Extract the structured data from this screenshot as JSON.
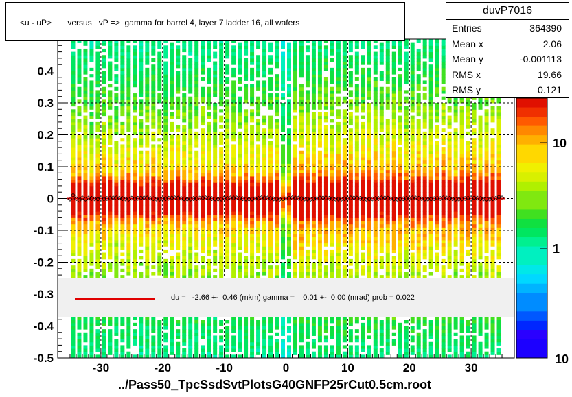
{
  "title": "<u - uP>       versus   vP =>  gamma for barrel 4, layer 7 ladder 16, all wafers",
  "stats": {
    "name": "duvP7016",
    "rows": [
      {
        "key": "Entries",
        "value": "364390"
      },
      {
        "key": "Mean x",
        "value": "2.06"
      },
      {
        "key": "Mean y",
        "value": "-0.001113"
      },
      {
        "key": "RMS x",
        "value": "19.66"
      },
      {
        "key": "RMS y",
        "value": "0.121"
      }
    ]
  },
  "fit_text": "du =   -2.66 +-  0.46 (mkm) gamma =    0.01 +-  0.00 (mrad) prob = 0.022",
  "footer": "../Pass50_TpcSsdSvtPlotsG40GNFP25rCut0.5cm.root",
  "colors": {
    "fit_line": "#e00000",
    "fit_box": "#f0f0f0"
  },
  "chart_data": {
    "type": "heatmap",
    "x_ticks": [
      -30,
      -20,
      -10,
      0,
      10,
      20,
      30
    ],
    "y_ticks": [
      -0.5,
      -0.4,
      -0.3,
      -0.2,
      -0.1,
      0,
      0.1,
      0.2,
      0.3,
      0.4
    ],
    "y_tick_labels": [
      "-0.5",
      "-0.4",
      "-0.3",
      "-0.2",
      "-0.1",
      "0",
      "0.1",
      "0.2",
      "0.3",
      "0.4"
    ],
    "xlim": [
      -37,
      37
    ],
    "ylim": [
      -0.5,
      0.5
    ],
    "z_scale": "log",
    "z_ticks": [
      1,
      10
    ],
    "z_tick_labels": [
      "1",
      "10"
    ],
    "z_bottom_label": "10",
    "grid": true,
    "band_center_y": 0,
    "profile_points": [
      {
        "x": -34.5,
        "y": 0.01
      },
      {
        "x": -33.5,
        "y": -0.005
      },
      {
        "x": -32.5,
        "y": -0.002
      },
      {
        "x": -30,
        "y": 0.0
      },
      {
        "x": -25,
        "y": 0.001
      },
      {
        "x": -20,
        "y": -0.001
      },
      {
        "x": -15,
        "y": 0.0
      },
      {
        "x": -10,
        "y": 0.002
      },
      {
        "x": -5,
        "y": 0.0
      },
      {
        "x": 0,
        "y": 0.0
      },
      {
        "x": 5,
        "y": 0.0
      },
      {
        "x": 10,
        "y": 0.0
      },
      {
        "x": 15,
        "y": 0.0
      },
      {
        "x": 20,
        "y": 0.0
      },
      {
        "x": 25,
        "y": 0.0
      },
      {
        "x": 30,
        "y": 0.0
      },
      {
        "x": 34.5,
        "y": 0.005
      }
    ]
  }
}
